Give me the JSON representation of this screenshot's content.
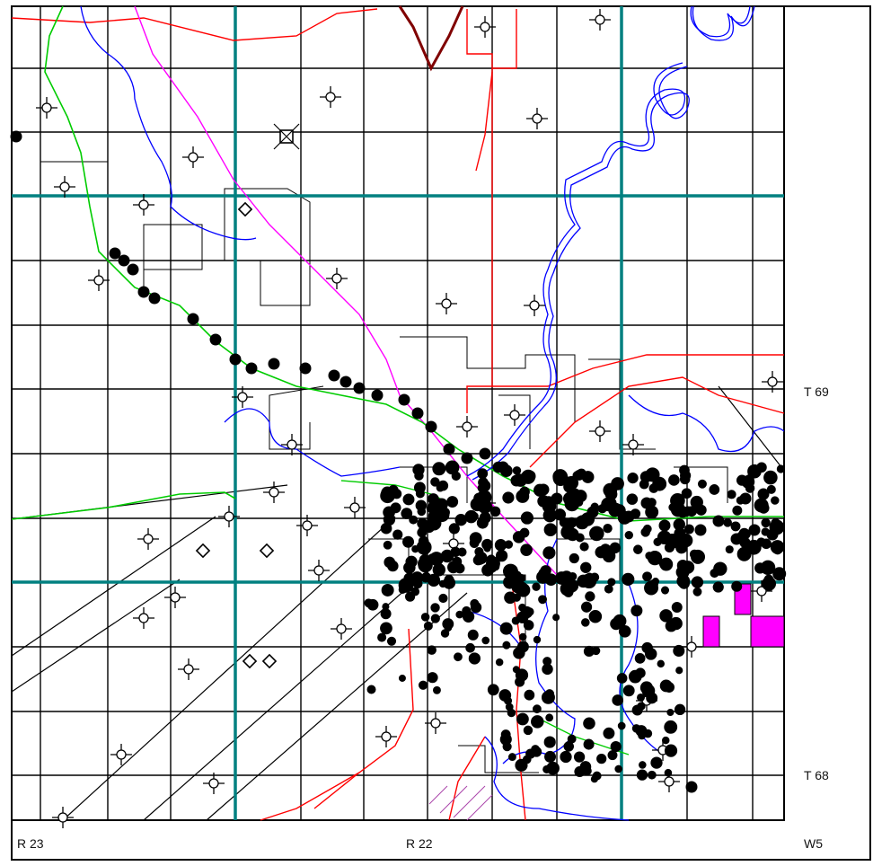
{
  "map": {
    "township_labels": [
      "T 69",
      "T 68"
    ],
    "range_labels": [
      "R 23",
      "R 22"
    ],
    "meridian_label": "W5",
    "colors": {
      "background": "#ffffff",
      "frame": "#000000",
      "section_lines": "#000000",
      "township_range_grid": "#008080",
      "rivers": "#0000ff",
      "roads": "#ff0000",
      "highway": "#800000",
      "pipeline_green": "#00cc00",
      "pipeline_magenta": "#ff00ff",
      "leases": "#ff00ff",
      "wells": "#000000"
    },
    "symbols": {
      "dry_well": "cross-circle-icon",
      "oil_well": "filled-circle-icon",
      "gas_well": "diamond-icon",
      "abandoned": "square-icon"
    }
  }
}
